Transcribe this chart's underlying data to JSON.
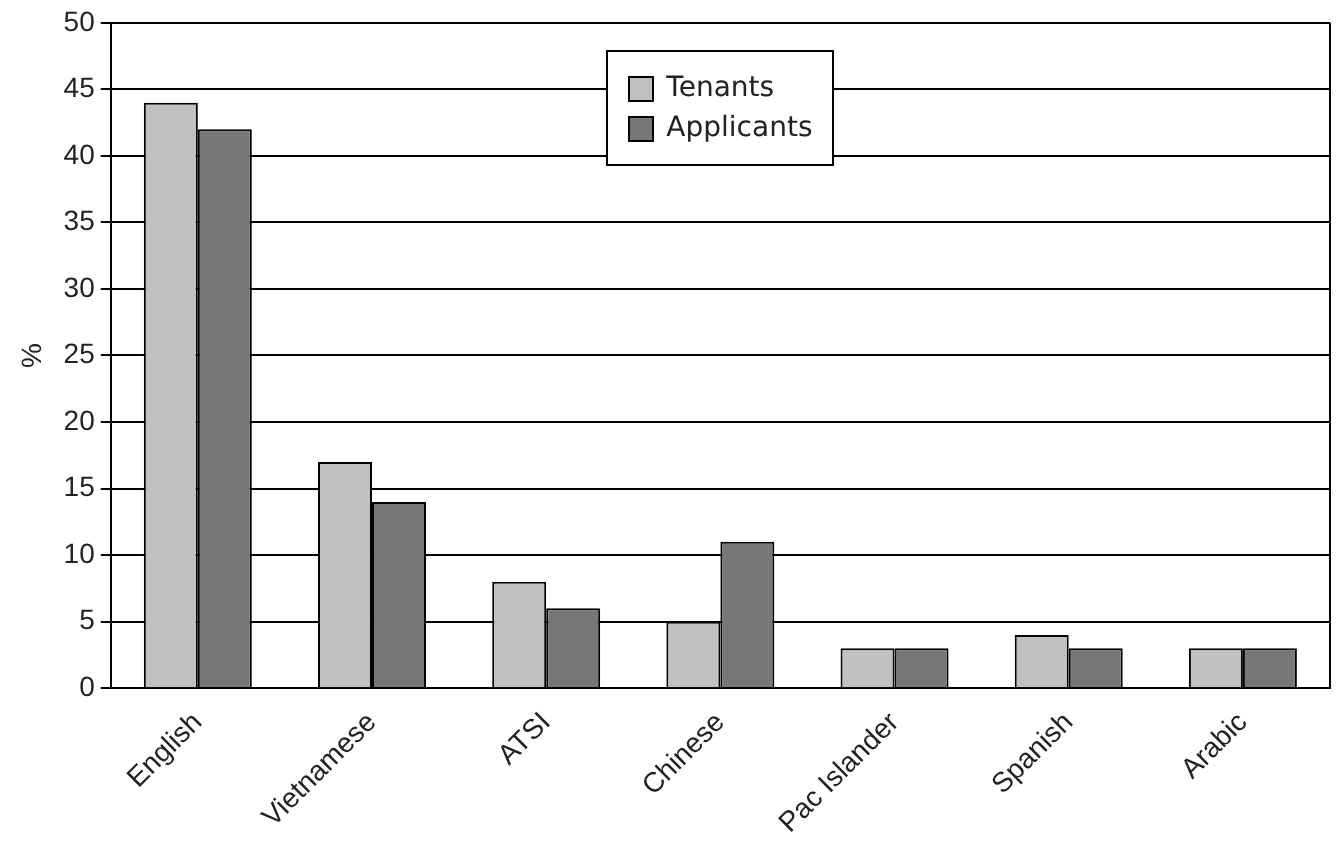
{
  "chart_data": {
    "type": "bar",
    "ylabel": "%",
    "categories": [
      "English",
      "Vietnamese",
      "ATSI",
      "Chinese",
      "Pac Islander",
      "Spanish",
      "Arabic"
    ],
    "series": [
      {
        "name": "Tenants",
        "color": "#c0c0c0",
        "values": [
          44,
          17,
          8,
          5,
          3,
          4,
          3
        ]
      },
      {
        "name": "Applicants",
        "color": "#777777",
        "values": [
          42,
          14,
          6,
          11,
          3,
          3,
          3
        ]
      }
    ],
    "ylim": [
      0,
      50
    ],
    "yticks": [
      0,
      5,
      10,
      15,
      20,
      25,
      30,
      35,
      40,
      45,
      50
    ],
    "grid": "y",
    "legend": "top"
  }
}
